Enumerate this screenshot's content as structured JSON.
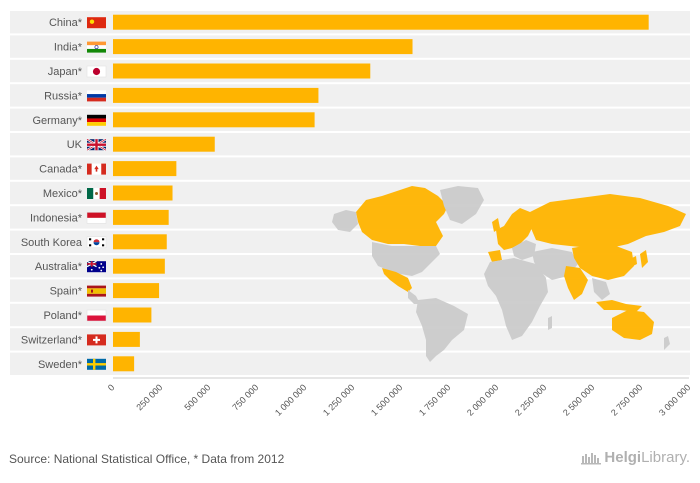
{
  "chart_data": {
    "type": "bar",
    "orientation": "horizontal",
    "title": "",
    "xlabel": "",
    "ylabel": "",
    "categories": [
      "China*",
      "India*",
      "Japan*",
      "Russia*",
      "Germany*",
      "UK",
      "Canada*",
      "Mexico*",
      "Indonesia*",
      "South Korea",
      "Australia*",
      "Spain*",
      "Poland*",
      "Switzerland*",
      "Sweden*"
    ],
    "values": [
      2790000,
      1560000,
      1340000,
      1070000,
      1050000,
      530000,
      330000,
      310000,
      290000,
      280000,
      270000,
      240000,
      200000,
      140000,
      110000
    ],
    "xlim": [
      0,
      3000000
    ],
    "xticks": [
      0,
      250000,
      500000,
      750000,
      1000000,
      1250000,
      1500000,
      1750000,
      2000000,
      2250000,
      2500000,
      2750000,
      3000000
    ],
    "xtick_labels": [
      "0",
      "250 000",
      "500 000",
      "750 000",
      "1 000 000",
      "1 250 000",
      "1 500 000",
      "1 750 000",
      "2 000 000",
      "2 250 000",
      "2 500 000",
      "2 750 000",
      "3 000 000"
    ],
    "grid": false,
    "bar_color": "#ffb400",
    "flag_icons": [
      "flag-china-icon",
      "flag-india-icon",
      "flag-japan-icon",
      "flag-russia-icon",
      "flag-germany-icon",
      "flag-uk-icon",
      "flag-canada-icon",
      "flag-mexico-icon",
      "flag-indonesia-icon",
      "flag-south-korea-icon",
      "flag-australia-icon",
      "flag-spain-icon",
      "flag-poland-icon",
      "flag-switzerland-icon",
      "flag-sweden-icon"
    ],
    "background_map": "world-map",
    "highlight_color": "#ffb400",
    "map_base_color": "#cccccc"
  },
  "footer": {
    "source": "Source: National Statistical Office, * Data from 2012",
    "logo_prefix": "Helgi",
    "logo_suffix": "Library."
  }
}
